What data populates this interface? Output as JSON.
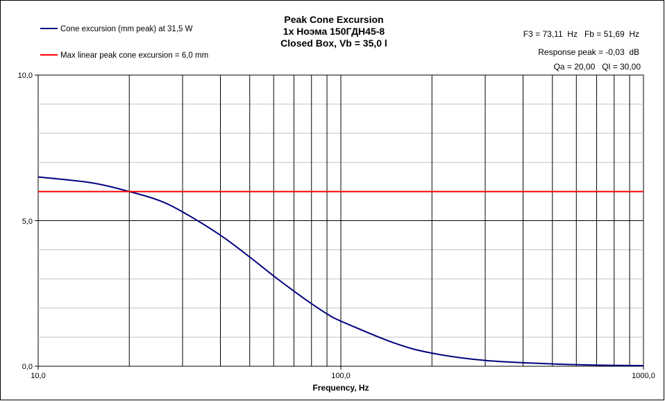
{
  "chart_data": {
    "type": "line",
    "title": [
      "Peak Cone Excursion",
      "1x Ноэма 150ГДН45-8",
      "Closed Box, Vb = 35,0 l"
    ],
    "xlabel": "Frequency, Hz",
    "ylabel": "",
    "xscale": "log",
    "xlim": [
      10,
      1000
    ],
    "ylim": [
      0,
      10
    ],
    "x_tick_labels": [
      "10,0",
      "100,0",
      "1000,0"
    ],
    "y_tick_labels": [
      "0,0",
      "5,0",
      "10,0"
    ],
    "legend_placement": "top-left",
    "annotations": [
      "F3 = 73,11  Hz   Fb = 51,69  Hz",
      "Response peak = -0,03  dB",
      "Qa = 20,00   Ql = 30,00"
    ],
    "series": [
      {
        "name": "Cone excursion (mm peak) at 31,5 W",
        "color": "#000080",
        "x": [
          10,
          15,
          20,
          25,
          30,
          40,
          50,
          60,
          70,
          80,
          90,
          100,
          150,
          200,
          300,
          500,
          700,
          1000
        ],
        "y": [
          6.5,
          6.3,
          6.0,
          5.7,
          5.3,
          4.5,
          3.75,
          3.1,
          2.58,
          2.15,
          1.8,
          1.55,
          0.8,
          0.45,
          0.2,
          0.08,
          0.04,
          0.02
        ]
      },
      {
        "name": "Max linear peak cone excursion = 6,0 mm",
        "color": "#ff0000",
        "x": [
          10,
          1000
        ],
        "y": [
          6.0,
          6.0
        ]
      }
    ]
  }
}
